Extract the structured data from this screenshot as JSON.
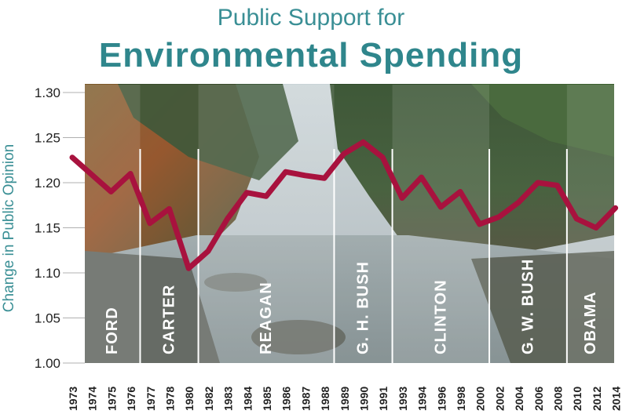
{
  "chart_data": {
    "type": "line",
    "title": "Public Support for",
    "subtitle": "Environmental Spending",
    "ylabel": "Change in Public Opinion",
    "xlabel": "",
    "ylim": [
      1.0,
      1.3
    ],
    "y_ticks": [
      "1.00",
      "1.05",
      "1.10",
      "1.15",
      "1.20",
      "1.25",
      "1.30"
    ],
    "x_ticks": [
      "1973",
      "1974",
      "1975",
      "1976",
      "1977",
      "1978",
      "1980",
      "1982",
      "1983",
      "1984",
      "1985",
      "1986",
      "1987",
      "1988",
      "1989",
      "1990",
      "1991",
      "1993",
      "1994",
      "1996",
      "1998",
      "2000",
      "2002",
      "2004",
      "2006",
      "2008",
      "2010",
      "2012",
      "2014"
    ],
    "values": [
      1.228,
      1.209,
      1.19,
      1.21,
      1.155,
      1.171,
      1.105,
      1.124,
      1.16,
      1.189,
      1.185,
      1.212,
      1.208,
      1.205,
      1.232,
      1.245,
      1.228,
      1.183,
      1.206,
      1.173,
      1.19,
      1.154,
      1.162,
      1.178,
      1.2,
      1.197,
      1.16,
      1.15,
      1.172
    ],
    "grid": false,
    "line_color": "#a8123e",
    "presidents": [
      {
        "name": "FORD",
        "start": 1,
        "end": 4
      },
      {
        "name": "CARTER",
        "start": 4,
        "end": 7
      },
      {
        "name": "REAGAN",
        "start": 7,
        "end": 14
      },
      {
        "name": "G. H. BUSH",
        "start": 14,
        "end": 17
      },
      {
        "name": "CLINTON",
        "start": 17,
        "end": 22
      },
      {
        "name": "G. W. BUSH",
        "start": 22,
        "end": 26
      },
      {
        "name": "OBAMA",
        "start": 26,
        "end": 29
      }
    ]
  }
}
